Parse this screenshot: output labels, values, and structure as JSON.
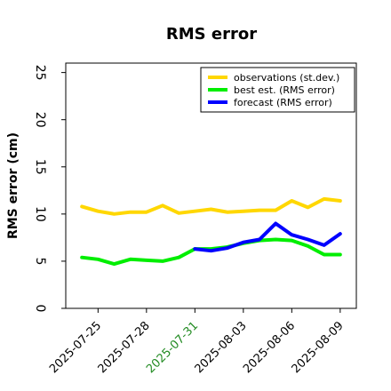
{
  "chart_data": {
    "type": "line",
    "title": "RMS error",
    "xlabel": "",
    "ylabel": "RMS error (cm)",
    "ylim": [
      0,
      26
    ],
    "yticks": [
      0,
      5,
      10,
      15,
      20,
      25
    ],
    "xlim": [
      "2025-07-23",
      "2025-08-10"
    ],
    "xticks": [
      {
        "date": "2025-07-25",
        "label": "2025-07-25",
        "color": "#000000"
      },
      {
        "date": "2025-07-28",
        "label": "2025-07-28",
        "color": "#000000"
      },
      {
        "date": "2025-07-31",
        "label": "2025-07-31",
        "color": "#228B22"
      },
      {
        "date": "2025-08-03",
        "label": "2025-08-03",
        "color": "#000000"
      },
      {
        "date": "2025-08-06",
        "label": "2025-08-06",
        "color": "#000000"
      },
      {
        "date": "2025-08-09",
        "label": "2025-08-09",
        "color": "#000000"
      }
    ],
    "grid": false,
    "legend_position": "top-right",
    "series": [
      {
        "name": "observations (st.dev.)",
        "color": "#FFD700",
        "x": [
          "2025-07-24",
          "2025-07-25",
          "2025-07-26",
          "2025-07-27",
          "2025-07-28",
          "2025-07-29",
          "2025-07-30",
          "2025-07-31",
          "2025-08-01",
          "2025-08-02",
          "2025-08-03",
          "2025-08-04",
          "2025-08-05",
          "2025-08-06",
          "2025-08-07",
          "2025-08-08",
          "2025-08-09"
        ],
        "y": [
          10.8,
          10.3,
          10.0,
          10.2,
          10.2,
          10.9,
          10.1,
          10.3,
          10.5,
          10.2,
          10.3,
          10.4,
          10.4,
          11.4,
          10.7,
          11.6,
          11.4
        ]
      },
      {
        "name": "best est. (RMS error)",
        "color": "#00EE00",
        "x": [
          "2025-07-24",
          "2025-07-25",
          "2025-07-26",
          "2025-07-27",
          "2025-07-28",
          "2025-07-29",
          "2025-07-30",
          "2025-07-31",
          "2025-08-01",
          "2025-08-02",
          "2025-08-03",
          "2025-08-04",
          "2025-08-05",
          "2025-08-06",
          "2025-08-07",
          "2025-08-08",
          "2025-08-09"
        ],
        "y": [
          5.4,
          5.2,
          4.7,
          5.2,
          5.1,
          5.0,
          5.4,
          6.3,
          6.3,
          6.5,
          6.9,
          7.2,
          7.3,
          7.2,
          6.6,
          5.7,
          5.7
        ]
      },
      {
        "name": "forecast (RMS error)",
        "color": "#0000FF",
        "x": [
          "2025-07-31",
          "2025-08-01",
          "2025-08-02",
          "2025-08-03",
          "2025-08-04",
          "2025-08-05",
          "2025-08-06",
          "2025-08-07",
          "2025-08-08",
          "2025-08-09"
        ],
        "y": [
          6.3,
          6.1,
          6.4,
          7.0,
          7.3,
          9.0,
          7.8,
          7.3,
          6.7,
          7.9
        ]
      }
    ]
  }
}
